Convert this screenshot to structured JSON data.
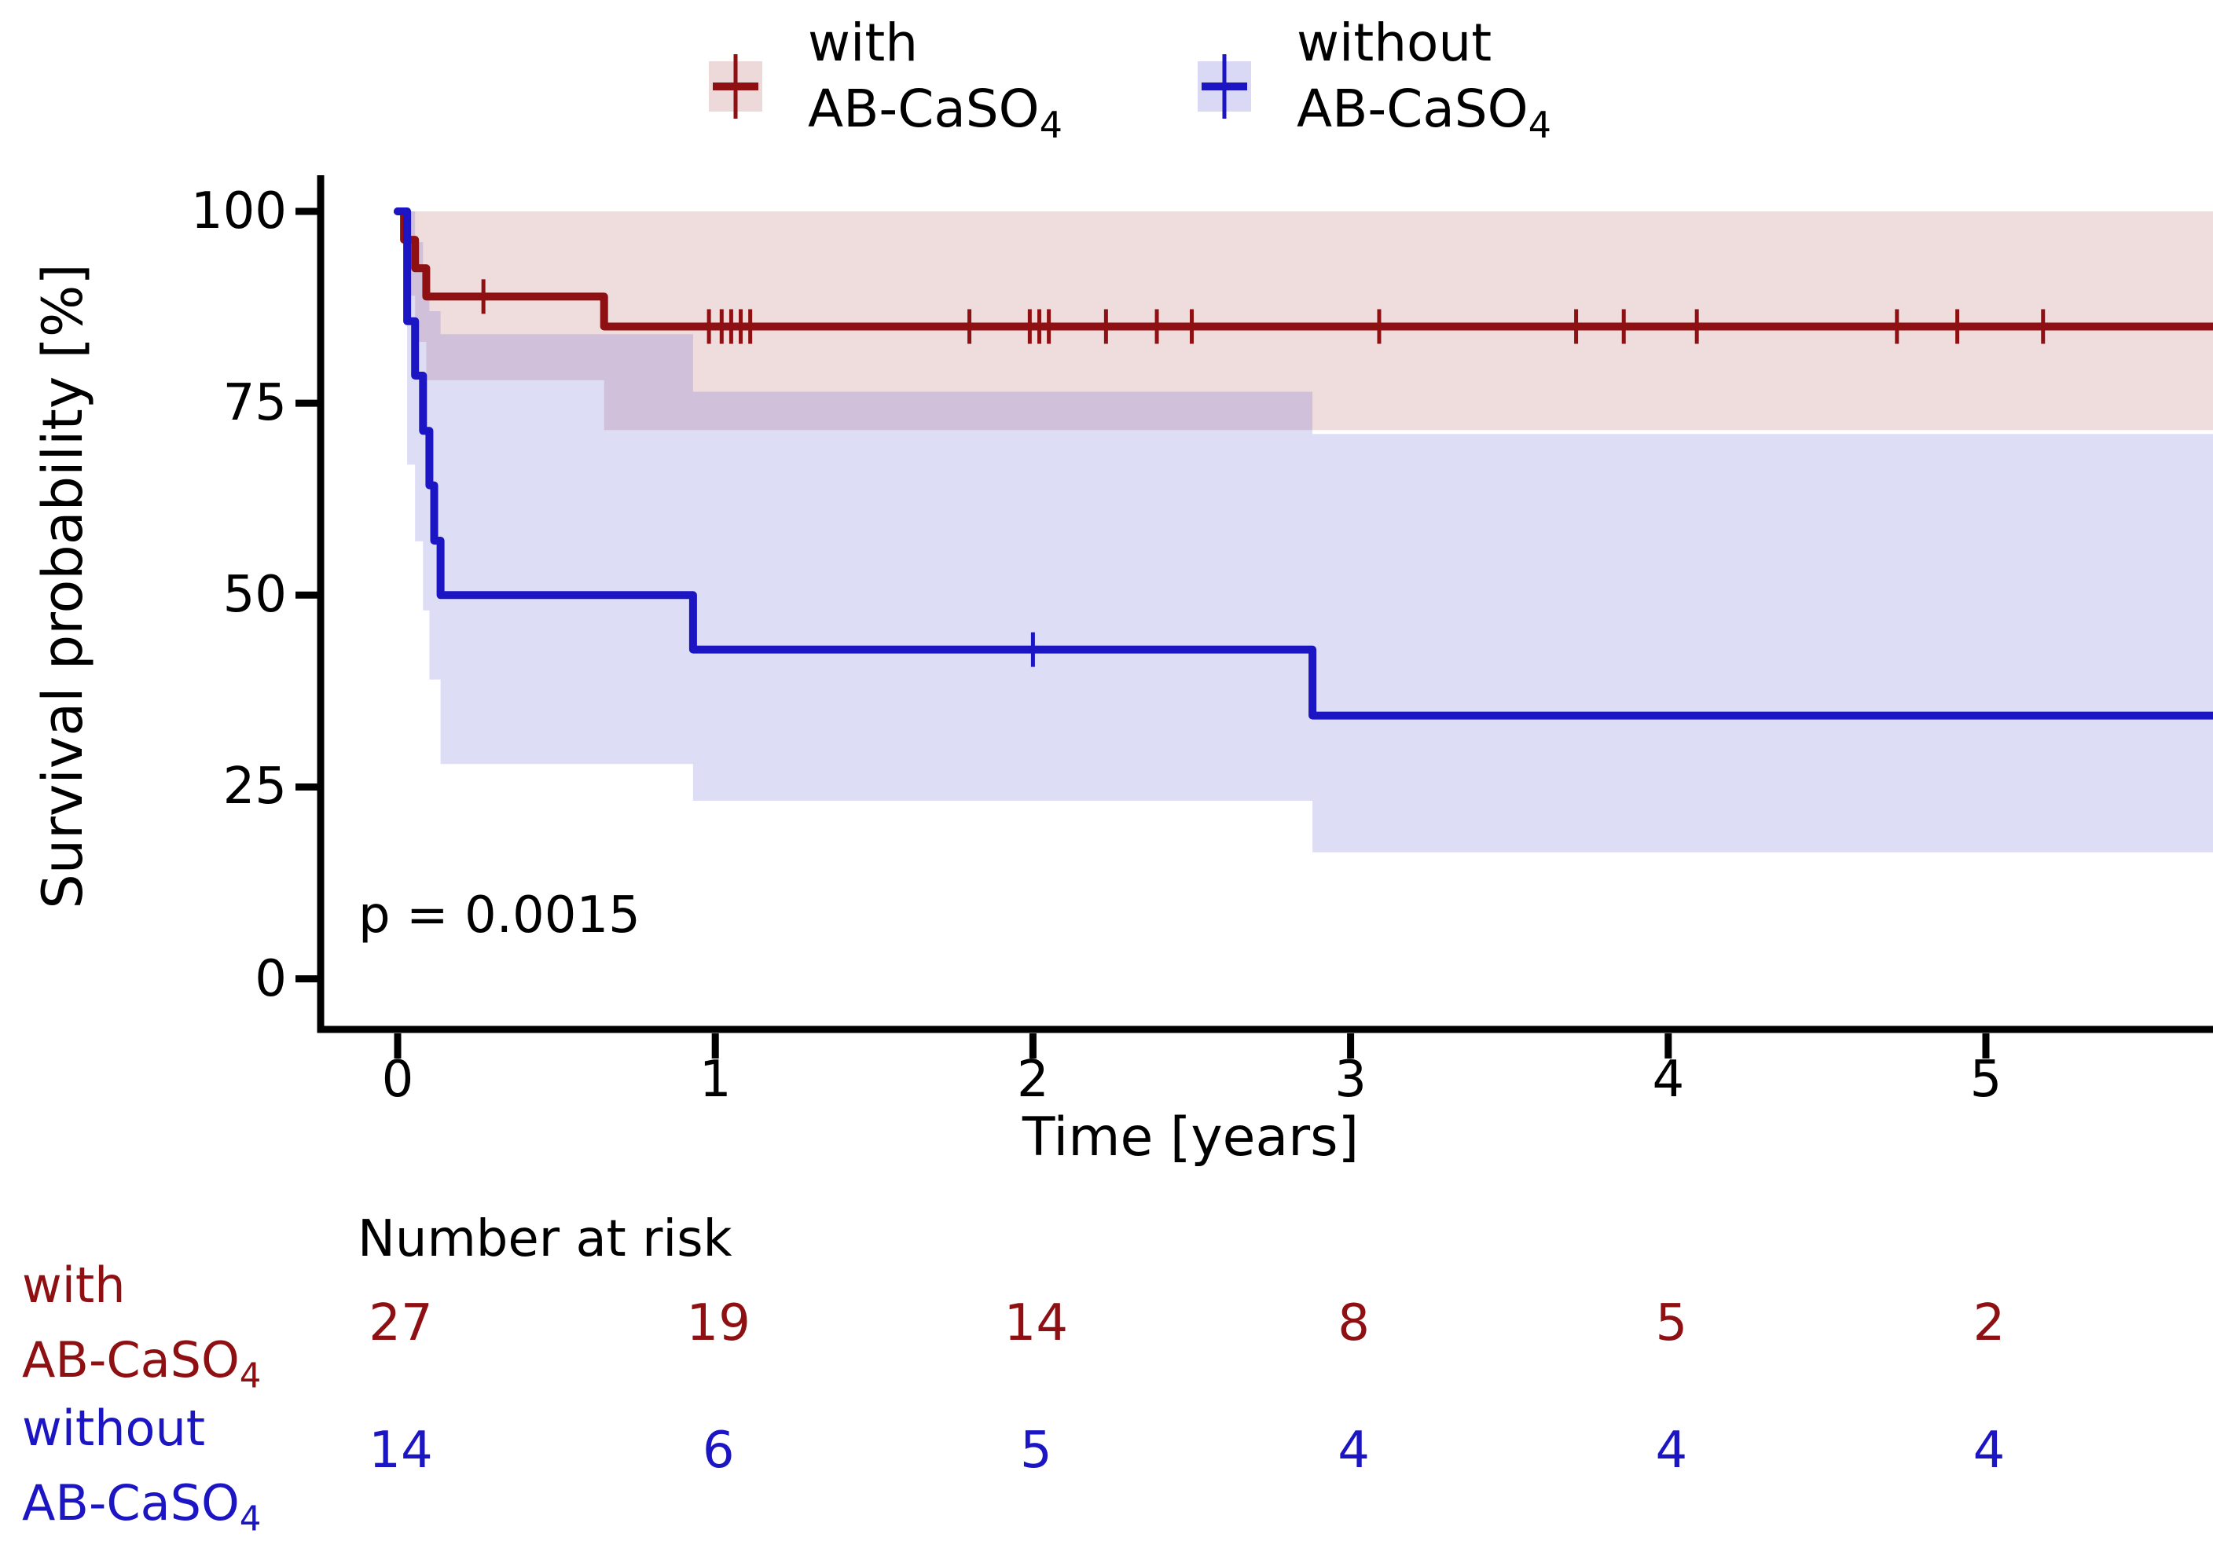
{
  "colors": {
    "with_group": "#8f1013",
    "without_group": "#1b15c4",
    "with_fill": "rgba(143,16,19,0.14)",
    "without_fill": "rgba(27,21,196,0.145)",
    "axis": "#000000"
  },
  "legend": {
    "entries": [
      {
        "line1": "with",
        "line2": "AB-CaSO",
        "sub": "4",
        "color": "#8f1013",
        "fill": "rgba(143,16,19,0.14)"
      },
      {
        "line1": "without",
        "line2": "AB-CaSO",
        "sub": "4",
        "color": "#1b15c4",
        "fill": "rgba(27,21,196,0.145)"
      }
    ]
  },
  "axes": {
    "xlabel": "Time [years]",
    "ylabel": "Survival probability [%]",
    "p_label": "p = 0.0015"
  },
  "chart_data": {
    "type": "line",
    "subtype": "kaplan-meier-step",
    "title": "",
    "xlabel": "Time [years]",
    "ylabel": "Survival probability [%]",
    "x_ticks": [
      0,
      1,
      2,
      3,
      4,
      5
    ],
    "y_ticks": [
      0,
      25,
      50,
      75,
      100
    ],
    "xlim": [
      -0.24,
      5.715
    ],
    "ylim": [
      -6.9,
      104.7
    ],
    "grid": false,
    "legend_position": "top-center",
    "p_value": "p = 0.0015",
    "series": [
      {
        "name": "with AB-CaSO4",
        "color": "#8f1013",
        "fill": "rgba(143,16,19,0.14)",
        "steps": [
          [
            0,
            100
          ],
          [
            0.02,
            96.3
          ],
          [
            0.055,
            92.6
          ],
          [
            0.09,
            88.9
          ],
          [
            0.65,
            85.0
          ],
          [
            5.715,
            85.0
          ]
        ],
        "censors": [
          [
            0.27,
            88.9
          ],
          [
            0.98,
            85
          ],
          [
            1.02,
            85
          ],
          [
            1.05,
            85
          ],
          [
            1.08,
            85
          ],
          [
            1.11,
            85
          ],
          [
            1.8,
            85
          ],
          [
            1.99,
            85
          ],
          [
            2.02,
            85
          ],
          [
            2.05,
            85
          ],
          [
            2.23,
            85
          ],
          [
            2.39,
            85
          ],
          [
            2.5,
            85
          ],
          [
            3.09,
            85
          ],
          [
            3.71,
            85
          ],
          [
            3.86,
            85
          ],
          [
            4.09,
            85
          ],
          [
            4.72,
            85
          ],
          [
            4.91,
            85
          ],
          [
            5.18,
            85
          ]
        ],
        "ci_upper": [
          [
            0.02,
            100
          ],
          [
            5.715,
            100
          ]
        ],
        "ci_lower": [
          [
            0.02,
            89
          ],
          [
            0.055,
            83
          ],
          [
            0.09,
            78
          ],
          [
            0.65,
            71.5
          ],
          [
            5.715,
            71.5
          ]
        ]
      },
      {
        "name": "without AB-CaSO4",
        "color": "#1b15c4",
        "fill": "rgba(27,21,196,0.145)",
        "steps": [
          [
            0,
            100
          ],
          [
            0.03,
            85.7
          ],
          [
            0.055,
            78.6
          ],
          [
            0.08,
            71.4
          ],
          [
            0.1,
            64.3
          ],
          [
            0.115,
            57.1
          ],
          [
            0.135,
            50.0
          ],
          [
            0.93,
            42.9
          ],
          [
            2.88,
            34.3
          ],
          [
            5.715,
            34.3
          ]
        ],
        "censors": [
          [
            2.0,
            42.9
          ]
        ],
        "ci_upper": [
          [
            0.03,
            100
          ],
          [
            0.055,
            96
          ],
          [
            0.08,
            91
          ],
          [
            0.1,
            87
          ],
          [
            0.135,
            84
          ],
          [
            0.93,
            76.5
          ],
          [
            2.88,
            71
          ],
          [
            5.715,
            71
          ]
        ],
        "ci_lower": [
          [
            0.03,
            67
          ],
          [
            0.055,
            57
          ],
          [
            0.08,
            48
          ],
          [
            0.1,
            39
          ],
          [
            0.135,
            28
          ],
          [
            0.93,
            23.2
          ],
          [
            2.88,
            16.5
          ],
          [
            5.715,
            16.5
          ]
        ]
      }
    ]
  },
  "risk_table": {
    "header": "Number at risk",
    "times": [
      0,
      1,
      2,
      3,
      4,
      5
    ],
    "rows": [
      {
        "line1": "with",
        "line2": "AB-CaSO",
        "sub": "4",
        "color": "#8f1013",
        "values": [
          "27",
          "19",
          "14",
          "8",
          "5",
          "2"
        ]
      },
      {
        "line1": "without",
        "line2": "AB-CaSO",
        "sub": "4",
        "color": "#1b15c4",
        "values": [
          "14",
          "6",
          "5",
          "4",
          "4",
          "4"
        ]
      }
    ]
  }
}
